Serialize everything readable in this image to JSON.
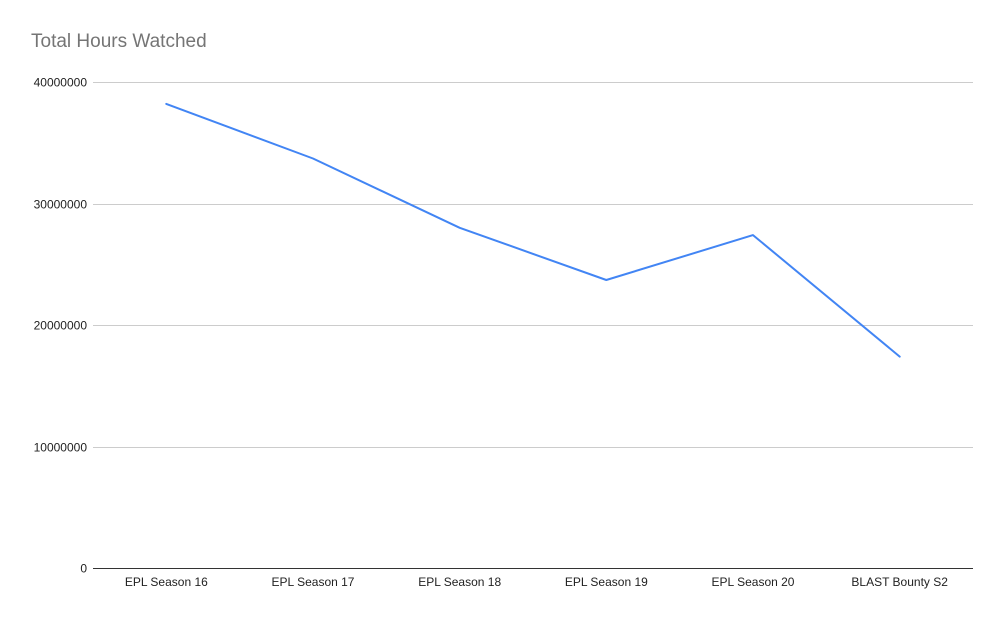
{
  "chart_data": {
    "type": "line",
    "title": "Total Hours Watched",
    "xlabel": "",
    "ylabel": "",
    "categories": [
      "EPL Season 16",
      "EPL Season 17",
      "EPL Season 18",
      "EPL Season 19",
      "EPL Season 20",
      "BLAST Bounty S2"
    ],
    "series": [
      {
        "values": [
          38200000,
          33700000,
          28000000,
          23700000,
          27400000,
          17400000
        ],
        "color": "#4285f4"
      }
    ],
    "ylim": [
      0,
      40000000
    ],
    "yticks": [
      0,
      10000000,
      20000000,
      30000000,
      40000000
    ],
    "ytick_labels": [
      "0",
      "10000000",
      "20000000",
      "30000000",
      "40000000"
    ],
    "grid": true,
    "legend": "none"
  }
}
